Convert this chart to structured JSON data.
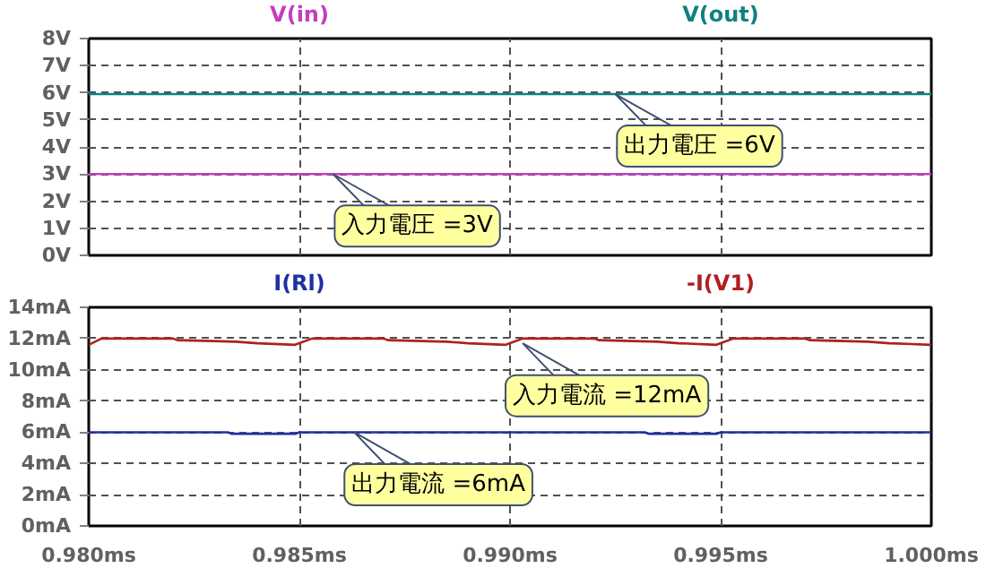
{
  "chart_data": [
    {
      "type": "line",
      "xlim": [
        0.98,
        1.0
      ],
      "ylim": [
        0,
        8
      ],
      "xticks": [
        {
          "value": 0.98,
          "label": null
        },
        {
          "value": 0.985,
          "label": null
        },
        {
          "value": 0.99,
          "label": null
        },
        {
          "value": 0.995,
          "label": null
        },
        {
          "value": 1.0,
          "label": null
        }
      ],
      "yticks": [
        {
          "value": 0,
          "label": "0V"
        },
        {
          "value": 1,
          "label": "1V"
        },
        {
          "value": 2,
          "label": "2V"
        },
        {
          "value": 3,
          "label": "3V"
        },
        {
          "value": 4,
          "label": "4V"
        },
        {
          "value": 5,
          "label": "5V"
        },
        {
          "value": 6,
          "label": "6V"
        },
        {
          "value": 7,
          "label": "7V"
        },
        {
          "value": 8,
          "label": "8V"
        }
      ],
      "tick_labels": "y",
      "grid": true,
      "line_style": "solid",
      "series": [
        {
          "name": "V(in)",
          "color": "#c040c0",
          "x": [
            0.98,
            1.0
          ],
          "values": [
            3,
            3
          ]
        },
        {
          "name": "V(out)",
          "color": "#108080",
          "x": [
            0.98,
            1.0
          ],
          "values": [
            5.95,
            5.95
          ]
        }
      ],
      "annotations": [
        {
          "text": "出力電圧 =6V",
          "x": 0.9925,
          "y": 5.95
        },
        {
          "text": "入力電圧 =3V",
          "x": 0.9858,
          "y": 3
        }
      ]
    },
    {
      "type": "line",
      "xlim": [
        0.98,
        1.0
      ],
      "ylim": [
        0,
        14
      ],
      "xticks": [
        {
          "value": 0.98,
          "label": "0.980ms"
        },
        {
          "value": 0.985,
          "label": "0.985ms"
        },
        {
          "value": 0.99,
          "label": "0.990ms"
        },
        {
          "value": 0.995,
          "label": "0.995ms"
        },
        {
          "value": 1.0,
          "label": "1.000ms"
        }
      ],
      "yticks": [
        {
          "value": 0,
          "label": "0mA"
        },
        {
          "value": 2,
          "label": "2mA"
        },
        {
          "value": 4,
          "label": "4mA"
        },
        {
          "value": 6,
          "label": "6mA"
        },
        {
          "value": 8,
          "label": "8mA"
        },
        {
          "value": 10,
          "label": "10mA"
        },
        {
          "value": 12,
          "label": "12mA"
        },
        {
          "value": 14,
          "label": "14mA"
        }
      ],
      "grid": true,
      "line_style": "solid",
      "series": [
        {
          "name": "I(Rl)",
          "color": "#2030a0",
          "x": [
            0.98,
            0.9833,
            0.9834,
            0.9849,
            0.985,
            0.9932,
            0.9933,
            0.9949,
            0.995,
            1.0
          ],
          "values": [
            6,
            6,
            5.9,
            5.9,
            6,
            6,
            5.9,
            5.9,
            6,
            6
          ]
        },
        {
          "name": "-I(V1)",
          "color": "#b02020",
          "x": [
            0.98,
            0.9803,
            0.982,
            0.9821,
            0.9835,
            0.984,
            0.9849,
            0.985,
            0.9853,
            0.987,
            0.9871,
            0.9885,
            0.989,
            0.9899,
            0.99,
            0.9903,
            0.992,
            0.9921,
            0.9935,
            0.994,
            0.9949,
            0.995,
            0.9953,
            0.997,
            0.9971,
            0.9985,
            0.999,
            1.0
          ],
          "values": [
            11.6,
            12,
            12,
            11.9,
            11.8,
            11.7,
            11.6,
            11.7,
            12,
            12,
            11.9,
            11.8,
            11.7,
            11.6,
            11.7,
            12,
            12,
            11.9,
            11.8,
            11.7,
            11.6,
            11.7,
            12,
            12,
            11.9,
            11.8,
            11.7,
            11.6
          ]
        }
      ],
      "annotations": [
        {
          "text": "入力電流 =12mA",
          "x": 0.9903,
          "y": 11.7
        },
        {
          "text": "出力電流 =6mA",
          "x": 0.9863,
          "y": 6
        }
      ]
    }
  ]
}
